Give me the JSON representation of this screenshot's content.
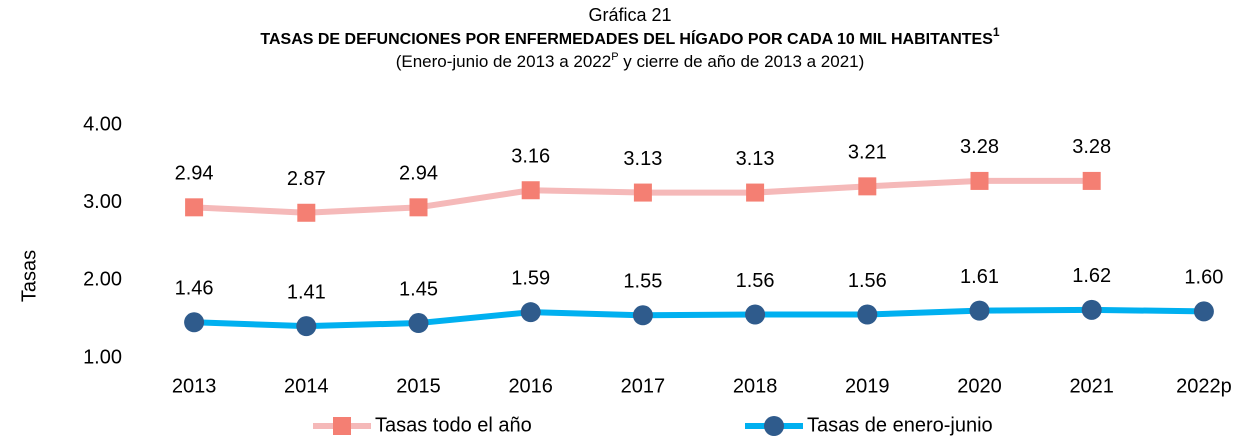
{
  "chart_data": {
    "type": "line",
    "label": "Gráfica 21",
    "title": "TASAS DE DEFUNCIONES POR ENFERMEDADES DEL HÍGADO POR CADA 10 MIL HABITANTES",
    "title_superscript": "1",
    "subtitle": {
      "before": "(Enero-junio de 2013 a 2022",
      "superscript": "P",
      "after": " y cierre de año de 2013 a 2021)"
    },
    "y_label": "Tasas",
    "categories": [
      "2013",
      "2014",
      "2015",
      "2016",
      "2017",
      "2018",
      "2019",
      "2020",
      "2021",
      "2022p"
    ],
    "series": [
      {
        "name": "Tasas todo el año",
        "color": "#f5b9b9",
        "marker": "square",
        "marker_color": "#f47f73",
        "values": [
          2.94,
          2.87,
          2.94,
          3.16,
          3.13,
          3.13,
          3.21,
          3.28,
          3.28,
          null
        ],
        "value_labels": [
          "2.94",
          "2.87",
          "2.94",
          "3.16",
          "3.13",
          "3.13",
          "3.21",
          "3.28",
          "3.28",
          null
        ]
      },
      {
        "name": "Tasas de enero-junio",
        "color": "#00b0f0",
        "marker": "circle",
        "marker_color": "#2f5b8c",
        "values": [
          1.46,
          1.41,
          1.45,
          1.59,
          1.55,
          1.56,
          1.56,
          1.61,
          1.62,
          1.6
        ],
        "value_labels": [
          "1.46",
          "1.41",
          "1.45",
          "1.59",
          "1.55",
          "1.56",
          "1.56",
          "1.61",
          "1.62",
          "1.60"
        ]
      }
    ],
    "ylim": [
      1,
      4
    ],
    "yticks": [
      {
        "value": 1,
        "label": "1.00"
      },
      {
        "value": 2,
        "label": "2.00"
      },
      {
        "value": 3,
        "label": "3.00"
      },
      {
        "value": 4,
        "label": "4.00"
      }
    ],
    "grid": false,
    "legend": "bottom"
  }
}
